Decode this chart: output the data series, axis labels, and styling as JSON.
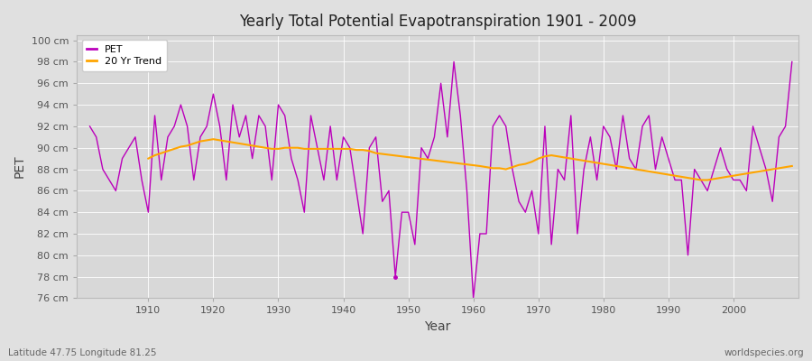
{
  "title": "Yearly Total Potential Evapotranspiration 1901 - 2009",
  "xlabel": "Year",
  "ylabel": "PET",
  "footer_left": "Latitude 47.75 Longitude 81.25",
  "footer_right": "worldspecies.org",
  "pet_color": "#bb00bb",
  "trend_color": "#ffa500",
  "bg_color": "#e0e0e0",
  "plot_bg_color": "#d8d8d8",
  "ylim_min": 76,
  "ylim_max": 100,
  "years": [
    1901,
    1902,
    1903,
    1904,
    1905,
    1906,
    1907,
    1908,
    1909,
    1910,
    1911,
    1912,
    1913,
    1914,
    1915,
    1916,
    1917,
    1918,
    1919,
    1920,
    1921,
    1922,
    1923,
    1924,
    1925,
    1926,
    1927,
    1928,
    1929,
    1930,
    1931,
    1932,
    1933,
    1934,
    1935,
    1936,
    1937,
    1938,
    1939,
    1940,
    1941,
    1942,
    1943,
    1944,
    1945,
    1946,
    1947,
    1948,
    1949,
    1950,
    1951,
    1952,
    1953,
    1954,
    1955,
    1956,
    1957,
    1958,
    1959,
    1960,
    1961,
    1962,
    1963,
    1964,
    1965,
    1966,
    1967,
    1968,
    1969,
    1970,
    1971,
    1972,
    1973,
    1974,
    1975,
    1976,
    1977,
    1978,
    1979,
    1980,
    1981,
    1982,
    1983,
    1984,
    1985,
    1986,
    1987,
    1988,
    1989,
    1990,
    1991,
    1992,
    1993,
    1994,
    1995,
    1996,
    1997,
    1998,
    1999,
    2000,
    2001,
    2002,
    2003,
    2004,
    2005,
    2006,
    2007,
    2008,
    2009
  ],
  "pet": [
    92,
    91,
    88,
    87,
    86,
    89,
    90,
    91,
    87,
    84,
    93,
    87,
    91,
    92,
    94,
    92,
    87,
    91,
    92,
    95,
    92,
    87,
    94,
    91,
    93,
    89,
    93,
    92,
    87,
    94,
    93,
    89,
    87,
    84,
    93,
    90,
    87,
    92,
    87,
    91,
    90,
    86,
    82,
    90,
    91,
    85,
    86,
    78,
    84,
    84,
    81,
    90,
    89,
    91,
    96,
    91,
    98,
    93,
    86,
    76,
    82,
    82,
    92,
    93,
    92,
    88,
    85,
    84,
    86,
    82,
    92,
    81,
    88,
    87,
    93,
    82,
    88,
    91,
    87,
    92,
    91,
    88,
    93,
    89,
    88,
    92,
    93,
    88,
    91,
    89,
    87,
    87,
    80,
    88,
    87,
    86,
    88,
    90,
    88,
    87,
    87,
    86,
    92,
    90,
    88,
    85,
    91,
    92,
    98
  ],
  "trend_years": [
    1910,
    1911,
    1912,
    1913,
    1914,
    1915,
    1916,
    1917,
    1918,
    1919,
    1920,
    1921,
    1922,
    1923,
    1924,
    1925,
    1926,
    1927,
    1928,
    1929,
    1930,
    1931,
    1932,
    1933,
    1934,
    1935,
    1936,
    1937,
    1938,
    1939,
    1940,
    1941,
    1942,
    1943,
    1944,
    1945,
    1961,
    1962,
    1963,
    1964,
    1965,
    1966,
    1967,
    1968,
    1969,
    1970,
    1971,
    1972,
    1973,
    1974,
    1975,
    1976,
    1977,
    1978,
    1979,
    1980,
    1981,
    1982,
    1983,
    1984,
    1985,
    1986,
    1987,
    1988,
    1989,
    1990,
    1991,
    1992,
    1993,
    1994,
    1995,
    1996,
    1997,
    1998,
    1999,
    2000,
    2001,
    2002,
    2003,
    2004,
    2005,
    2006,
    2007,
    2008,
    2009
  ],
  "trend": [
    89.0,
    89.3,
    89.5,
    89.7,
    89.9,
    90.1,
    90.2,
    90.4,
    90.6,
    90.7,
    90.8,
    90.7,
    90.6,
    90.5,
    90.4,
    90.3,
    90.2,
    90.1,
    90.0,
    89.9,
    89.9,
    90.0,
    90.0,
    90.0,
    89.9,
    89.9,
    89.9,
    89.9,
    89.9,
    89.9,
    89.9,
    89.9,
    89.8,
    89.8,
    89.7,
    89.5,
    88.3,
    88.2,
    88.1,
    88.1,
    88.0,
    88.2,
    88.4,
    88.5,
    88.7,
    89.0,
    89.2,
    89.3,
    89.2,
    89.1,
    89.0,
    88.9,
    88.8,
    88.7,
    88.6,
    88.5,
    88.4,
    88.3,
    88.2,
    88.1,
    88.0,
    87.9,
    87.8,
    87.7,
    87.6,
    87.5,
    87.4,
    87.3,
    87.2,
    87.1,
    87.0,
    87.0,
    87.1,
    87.2,
    87.3,
    87.4,
    87.5,
    87.6,
    87.7,
    87.8,
    87.9,
    88.0,
    88.1,
    88.2,
    88.3
  ]
}
